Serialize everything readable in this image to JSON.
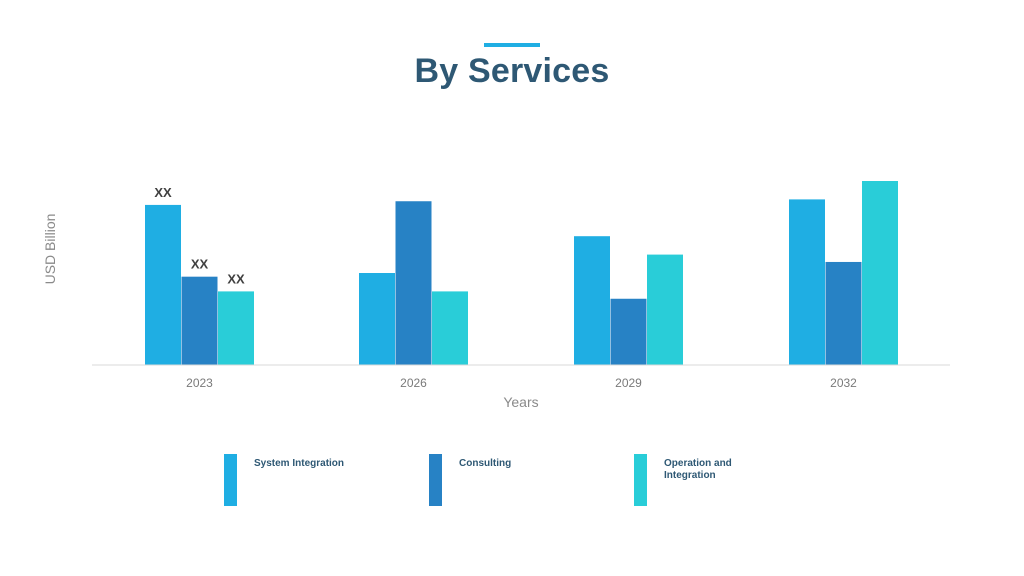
{
  "slide": {
    "title": "By Services",
    "accent_color": "#1faee3",
    "title_color": "#2e5874"
  },
  "chart_data": {
    "type": "bar",
    "categories": [
      "2023",
      "2026",
      "2029",
      "2032"
    ],
    "series": [
      {
        "name": "System Integration",
        "color": "#1faee3",
        "values": [
          8.7,
          5.0,
          7.0,
          9.0
        ]
      },
      {
        "name": "Consulting",
        "color": "#2782c5",
        "values": [
          4.8,
          8.9,
          3.6,
          5.6
        ]
      },
      {
        "name": "Operation and Integration",
        "color": "#29cdd8",
        "values": [
          4.0,
          4.0,
          6.0,
          10.0
        ]
      }
    ],
    "data_labels": [
      {
        "category": "2023",
        "series": "System Integration",
        "text": "XX"
      },
      {
        "category": "2023",
        "series": "Consulting",
        "text": "XX"
      },
      {
        "category": "2023",
        "series": "Operation and Integration",
        "text": "XX"
      }
    ],
    "xlabel": "Years",
    "ylabel": "USD Billion",
    "ylim": [
      0,
      10
    ],
    "grid": false,
    "legend_position": "bottom"
  }
}
